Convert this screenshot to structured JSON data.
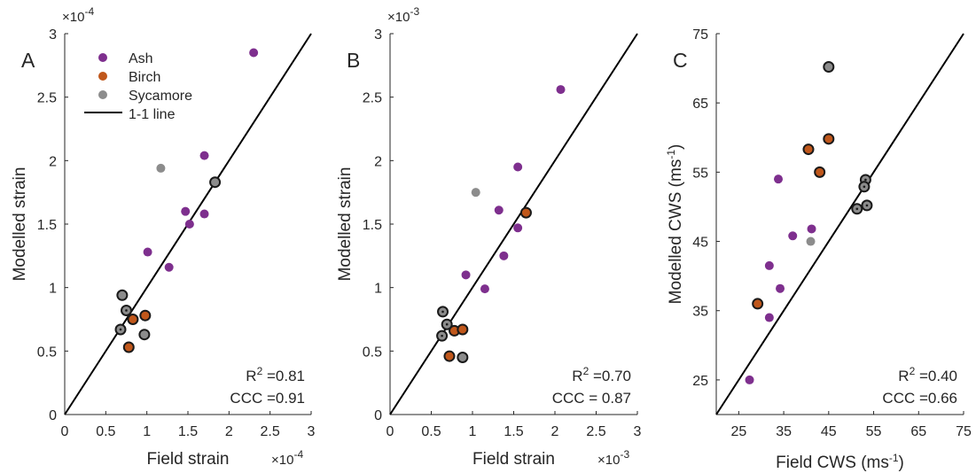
{
  "legend": [
    {
      "label": "Ash",
      "color": "#7E2F8E"
    },
    {
      "label": "Birch",
      "color": "#C0571B"
    },
    {
      "label": "Sycamore",
      "color": "#8C8C8C"
    },
    {
      "label": "1-1 line",
      "color": "#000000"
    }
  ],
  "chart_data": [
    {
      "type": "scatter",
      "panel_label": "A",
      "xlabel": "Field strain",
      "ylabel": "Modelled strain",
      "x_exponent_label": "×10",
      "x_exponent": "-4",
      "y_exponent_label": "×10",
      "y_exponent": "-4",
      "xlim": [
        0,
        3
      ],
      "ylim": [
        0,
        3
      ],
      "xticks": [
        "0",
        "0.5",
        "1",
        "1.5",
        "2",
        "2.5",
        "3"
      ],
      "yticks": [
        "0",
        "0.5",
        "1",
        "1.5",
        "2",
        "2.5",
        "3"
      ],
      "xtick_values": [
        0,
        0.5,
        1,
        1.5,
        2,
        2.5,
        3
      ],
      "ytick_values": [
        0,
        0.5,
        1,
        1.5,
        2,
        2.5,
        3
      ],
      "one_to_one_line": true,
      "stats": {
        "r2_label": "R",
        "r2_sup": "2",
        "r2_value": " =0.81",
        "ccc": "CCC =0.91"
      },
      "series": [
        {
          "name": "Ash",
          "color": "#7E2F8E",
          "points": [
            {
              "x": 2.3,
              "y": 2.85
            },
            {
              "x": 1.7,
              "y": 2.04
            },
            {
              "x": 1.47,
              "y": 1.6
            },
            {
              "x": 1.7,
              "y": 1.58
            },
            {
              "x": 1.52,
              "y": 1.5
            },
            {
              "x": 1.01,
              "y": 1.28
            },
            {
              "x": 1.27,
              "y": 1.16
            }
          ]
        },
        {
          "name": "Birch",
          "color": "#C0571B",
          "points": [
            {
              "x": 0.83,
              "y": 0.75,
              "outline": true
            },
            {
              "x": 0.98,
              "y": 0.78,
              "outline": true
            },
            {
              "x": 0.78,
              "y": 0.53,
              "outline": true
            }
          ]
        },
        {
          "name": "Sycamore",
          "color": "#8C8C8C",
          "points": [
            {
              "x": 1.17,
              "y": 1.94
            },
            {
              "x": 1.83,
              "y": 1.83,
              "outline": true
            },
            {
              "x": 0.7,
              "y": 0.94,
              "outline": true
            },
            {
              "x": 0.75,
              "y": 0.82,
              "outline": true,
              "dot": true
            },
            {
              "x": 0.68,
              "y": 0.67,
              "outline": true,
              "dot": true
            },
            {
              "x": 0.97,
              "y": 0.63,
              "outline": true
            }
          ]
        }
      ]
    },
    {
      "type": "scatter",
      "panel_label": "B",
      "xlabel": "Field strain",
      "ylabel": "Modelled strain",
      "x_exponent_label": "×10",
      "x_exponent": "-3",
      "y_exponent_label": "×10",
      "y_exponent": "-3",
      "xlim": [
        0,
        3
      ],
      "ylim": [
        0,
        3
      ],
      "xticks": [
        "0",
        "0.5",
        "1",
        "1.5",
        "2",
        "2.5",
        "3"
      ],
      "yticks": [
        "0",
        "0.5",
        "1",
        "1.5",
        "2",
        "2.5",
        "3"
      ],
      "xtick_values": [
        0,
        0.5,
        1,
        1.5,
        2,
        2.5,
        3
      ],
      "ytick_values": [
        0,
        0.5,
        1,
        1.5,
        2,
        2.5,
        3
      ],
      "one_to_one_line": true,
      "stats": {
        "r2_label": "R",
        "r2_sup": "2",
        "r2_value": " =0.70",
        "ccc": "CCC = 0.87"
      },
      "series": [
        {
          "name": "Ash",
          "color": "#7E2F8E",
          "points": [
            {
              "x": 2.07,
              "y": 2.56
            },
            {
              "x": 1.55,
              "y": 1.95
            },
            {
              "x": 1.32,
              "y": 1.61
            },
            {
              "x": 1.55,
              "y": 1.47
            },
            {
              "x": 1.38,
              "y": 1.25
            },
            {
              "x": 0.92,
              "y": 1.1
            },
            {
              "x": 1.15,
              "y": 0.99
            }
          ]
        },
        {
          "name": "Birch",
          "color": "#C0571B",
          "points": [
            {
              "x": 1.65,
              "y": 1.59,
              "outline": true
            },
            {
              "x": 0.78,
              "y": 0.66,
              "outline": true
            },
            {
              "x": 0.88,
              "y": 0.67,
              "outline": true
            },
            {
              "x": 0.72,
              "y": 0.46,
              "outline": true
            }
          ]
        },
        {
          "name": "Sycamore",
          "color": "#8C8C8C",
          "points": [
            {
              "x": 1.04,
              "y": 1.75
            },
            {
              "x": 0.64,
              "y": 0.81,
              "outline": true,
              "dot": true
            },
            {
              "x": 0.69,
              "y": 0.71,
              "outline": true,
              "dot": true
            },
            {
              "x": 0.63,
              "y": 0.62,
              "outline": true,
              "dot": true
            },
            {
              "x": 0.88,
              "y": 0.45,
              "outline": true
            }
          ]
        }
      ]
    },
    {
      "type": "scatter",
      "panel_label": "C",
      "xlabel": "Field CWS (ms",
      "xlabel_sup": "-1",
      "xlabel_end": ")",
      "ylabel": "Modelled CWS (ms",
      "ylabel_sup": "-1",
      "ylabel_end": ")",
      "xlim": [
        20,
        75
      ],
      "ylim": [
        20,
        75
      ],
      "xticks": [
        "25",
        "35",
        "45",
        "55",
        "65",
        "75"
      ],
      "yticks": [
        "25",
        "35",
        "45",
        "55",
        "65",
        "75"
      ],
      "xtick_values": [
        25,
        35,
        45,
        55,
        65,
        75
      ],
      "ytick_values": [
        25,
        35,
        45,
        55,
        65,
        75
      ],
      "one_to_one_line": true,
      "stats": {
        "r2_label": "R",
        "r2_sup": "2",
        "r2_value": " =0.40",
        "ccc": "CCC =0.66"
      },
      "series": [
        {
          "name": "Ash",
          "color": "#7E2F8E",
          "points": [
            {
              "x": 33.8,
              "y": 54.0
            },
            {
              "x": 37.0,
              "y": 45.8
            },
            {
              "x": 41.2,
              "y": 46.8
            },
            {
              "x": 31.8,
              "y": 41.5
            },
            {
              "x": 34.2,
              "y": 38.2
            },
            {
              "x": 31.8,
              "y": 34.0
            },
            {
              "x": 27.4,
              "y": 25.0
            }
          ]
        },
        {
          "name": "Birch",
          "color": "#C0571B",
          "points": [
            {
              "x": 40.5,
              "y": 58.3,
              "outline": true
            },
            {
              "x": 45.0,
              "y": 59.8,
              "outline": true
            },
            {
              "x": 43.0,
              "y": 55.0,
              "outline": true
            },
            {
              "x": 29.2,
              "y": 36.0,
              "outline": true
            }
          ]
        },
        {
          "name": "Sycamore",
          "color": "#8C8C8C",
          "points": [
            {
              "x": 45.0,
              "y": 70.2,
              "outline": true
            },
            {
              "x": 53.2,
              "y": 53.9,
              "outline": true,
              "dot": true
            },
            {
              "x": 52.9,
              "y": 52.9,
              "outline": true,
              "dot": true
            },
            {
              "x": 53.5,
              "y": 50.2,
              "outline": true,
              "dot": true
            },
            {
              "x": 51.3,
              "y": 49.7,
              "outline": true,
              "dot": true
            },
            {
              "x": 41.0,
              "y": 45.0
            }
          ]
        }
      ]
    }
  ]
}
